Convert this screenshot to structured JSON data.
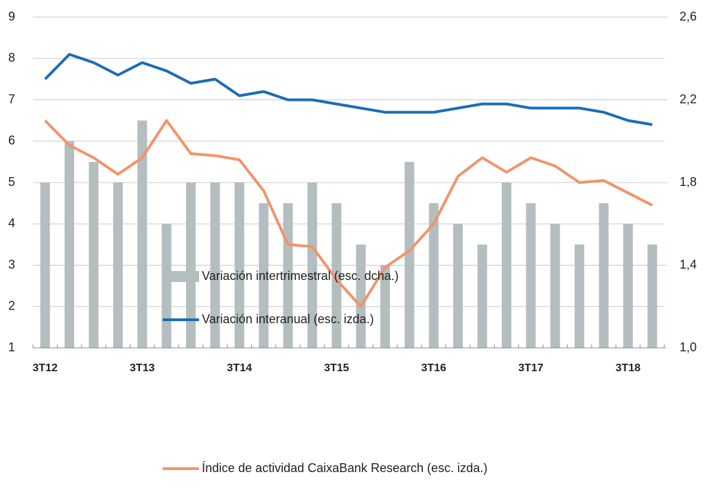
{
  "chart_data": {
    "type": "bar-line",
    "categories": [
      "3T12",
      null,
      null,
      null,
      "3T13",
      null,
      null,
      null,
      "3T14",
      null,
      null,
      null,
      "3T15",
      null,
      null,
      null,
      "3T16",
      null,
      null,
      null,
      "3T17",
      null,
      null,
      null,
      "3T18",
      null
    ],
    "series": [
      {
        "name": "Variación intertrimestral (esc. dcha.)",
        "type": "bar",
        "axis": "y2",
        "color": "#b4bdc0",
        "values": [
          1.8,
          2.0,
          1.9,
          1.8,
          2.1,
          1.6,
          1.8,
          1.8,
          1.8,
          1.7,
          1.7,
          1.8,
          1.7,
          1.5,
          1.4,
          1.9,
          1.7,
          1.6,
          1.5,
          1.8,
          1.7,
          1.6,
          1.5,
          1.7,
          1.6,
          1.5
        ]
      },
      {
        "name": "Variación interanual (esc. izda.)",
        "type": "line",
        "color": "#1b6db4",
        "values": [
          7.5,
          8.1,
          7.9,
          7.6,
          7.9,
          7.7,
          7.4,
          7.5,
          7.1,
          7.2,
          7.0,
          7.0,
          6.9,
          6.8,
          6.7,
          6.7,
          6.7,
          6.8,
          6.9,
          6.9,
          6.8,
          6.8,
          6.8,
          6.7,
          6.5,
          6.4
        ]
      },
      {
        "name": "Índice de actividad CaixaBank Research (esc. izda.)",
        "type": "line",
        "color": "#f0956a",
        "values": [
          6.5,
          5.9,
          5.6,
          5.2,
          5.6,
          6.5,
          5.7,
          5.65,
          5.55,
          4.8,
          3.5,
          3.45,
          2.65,
          2.0,
          2.95,
          3.35,
          4.0,
          5.15,
          5.6,
          5.25,
          5.6,
          5.4,
          5.0,
          5.05,
          4.75,
          4.45
        ]
      }
    ],
    "ylim": [
      1,
      9
    ],
    "yticks": [
      1,
      2,
      3,
      4,
      5,
      6,
      7,
      8,
      9
    ],
    "y2lim": [
      1.0,
      2.6
    ],
    "y2ticks": [
      {
        "value": 1.0,
        "label": "1,0"
      },
      {
        "value": 1.4,
        "label": "1,4"
      },
      {
        "value": 1.8,
        "label": "1,8"
      },
      {
        "value": 2.2,
        "label": "2,2"
      },
      {
        "value": 2.6,
        "label": "2,6"
      }
    ],
    "grid": true
  }
}
